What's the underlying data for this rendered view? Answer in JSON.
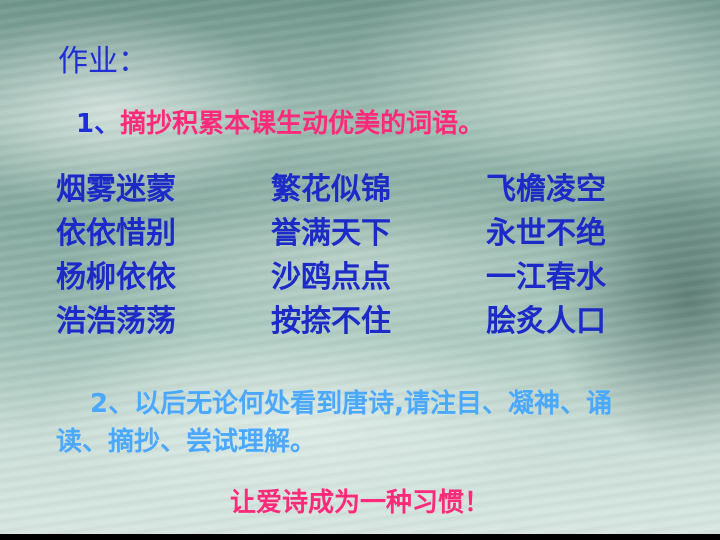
{
  "title": "作业：",
  "task1": {
    "number": "1、",
    "text": "摘抄积累本课生动优美的词语。"
  },
  "words": [
    "烟雾迷蒙",
    "繁花似锦",
    "飞檐凌空",
    "依依惜别",
    "誉满天下",
    "永世不绝",
    "杨柳依依",
    "沙鸥点点",
    "一江春水",
    "浩浩荡荡",
    "按捺不住",
    "脍炙人口"
  ],
  "task2": {
    "text": "2、以后无论何处看到唐诗,请注目、凝神、诵读、摘抄、尝试理解。"
  },
  "closing": "让爱诗成为一种习惯！",
  "colors": {
    "title": "#1e2fd6",
    "task1_text": "#ff2a7a",
    "words": "#1c2ac8",
    "task2": "#4aa8ff",
    "closing": "#ff2a7a"
  }
}
